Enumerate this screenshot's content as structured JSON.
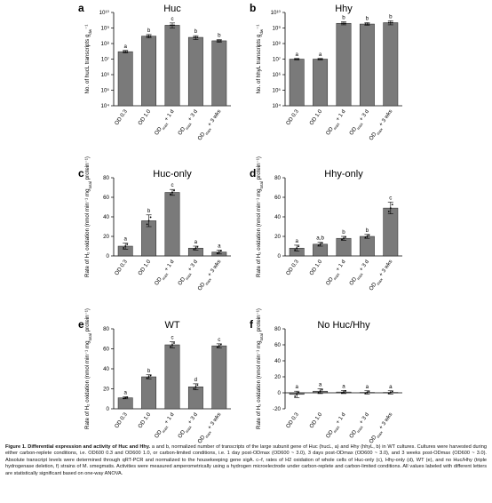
{
  "chart_data": [
    {
      "panel": "a",
      "title": "Huc",
      "type": "bar",
      "log_scale": true,
      "ylabel": "No. of hucL transcripts g_dw⁻¹",
      "ylim": [
        10000,
        10000000000
      ],
      "yticks": [
        "10⁴",
        "10⁵",
        "10⁶",
        "10⁷",
        "10⁸",
        "10⁹",
        "10¹⁰"
      ],
      "categories": [
        "OD 0.3",
        "OD 1.0",
        "OD_max + 1 d",
        "OD_max + 3 d",
        "OD_max + 3 wks"
      ],
      "values": [
        30000000,
        300000000,
        1500000000,
        250000000,
        150000000
      ],
      "err_low": [
        25000000,
        230000000,
        1000000000,
        180000000,
        120000000
      ],
      "err_high": [
        36000000,
        380000000,
        2100000000,
        320000000,
        180000000
      ],
      "letters": [
        "a",
        "b",
        "c",
        "b",
        "b"
      ]
    },
    {
      "panel": "b",
      "title": "Hhy",
      "type": "bar",
      "log_scale": true,
      "ylabel": "No. of hhyL transcripts g_dw⁻¹",
      "ylim": [
        10000,
        10000000000
      ],
      "yticks": [
        "10⁴",
        "10⁵",
        "10⁶",
        "10⁷",
        "10⁸",
        "10⁹",
        "10¹⁰"
      ],
      "categories": [
        "OD 0.3",
        "OD 1.0",
        "OD_max + 1 d",
        "OD_max + 3 d",
        "OD_max + 3 wks"
      ],
      "values": [
        10000000,
        10000000,
        2000000000,
        1800000000,
        2200000000
      ],
      "err_low": [
        9000000,
        9000000,
        1600000000,
        1500000000,
        1600000000
      ],
      "err_high": [
        11000000,
        11000000,
        2500000000,
        2200000000,
        2900000000
      ],
      "letters": [
        "a",
        "a",
        "b",
        "b",
        "b"
      ]
    },
    {
      "panel": "c",
      "title": "Huc-only",
      "type": "bar",
      "log_scale": false,
      "ylabel": "Rate of H₂ oxidation (nmol min⁻¹ mg_total protein⁻¹)",
      "ylim": [
        0,
        80
      ],
      "yticks": [
        "0",
        "20",
        "40",
        "60",
        "80"
      ],
      "categories": [
        "OD 0.3",
        "OD 1.0",
        "OD_max + 1 d",
        "OD_max + 3 d",
        "OD_max + 3 wks"
      ],
      "values": [
        10,
        36,
        65,
        8,
        4
      ],
      "errors": [
        3,
        6,
        3,
        2,
        2
      ],
      "letters": [
        "a",
        "b",
        "c",
        "a",
        "a"
      ]
    },
    {
      "panel": "d",
      "title": "Hhy-only",
      "type": "bar",
      "log_scale": false,
      "ylabel": "Rate of H₂ oxidation (nmol min⁻¹ mg_total protein⁻¹)",
      "ylim": [
        0,
        80
      ],
      "yticks": [
        "0",
        "20",
        "40",
        "60",
        "80"
      ],
      "categories": [
        "OD 0.3",
        "OD 1.0",
        "OD_max + 1 d",
        "OD_max + 3 d",
        "OD_max + 3 wks"
      ],
      "values": [
        8,
        12,
        18,
        20,
        49
      ],
      "errors": [
        3,
        2,
        2,
        2,
        6
      ],
      "letters": [
        "a",
        "a,b",
        "b",
        "b",
        "c"
      ]
    },
    {
      "panel": "e",
      "title": "WT",
      "type": "bar",
      "log_scale": false,
      "ylabel": "Rate of H₂ oxidation (nmol min⁻¹ mg_total protein⁻¹)",
      "ylim": [
        0,
        80
      ],
      "yticks": [
        "0",
        "20",
        "40",
        "60",
        "80"
      ],
      "categories": [
        "OD 0.3",
        "OD 1.0",
        "OD_max + 1 d",
        "OD_max + 3 d",
        "OD_max + 3 wks"
      ],
      "values": [
        11,
        32,
        64,
        22,
        63
      ],
      "errors": [
        1,
        2,
        3,
        3,
        2
      ],
      "letters": [
        "a",
        "b",
        "c",
        "d",
        "c"
      ]
    },
    {
      "panel": "f",
      "title": "No Huc/Hhy",
      "type": "bar",
      "log_scale": false,
      "ylabel": "Rate of H₂ oxidation (nmol min⁻¹ mg_total protein⁻¹)",
      "ylim": [
        -20,
        80
      ],
      "yticks": [
        "-20",
        "0",
        "20",
        "40",
        "60",
        "80"
      ],
      "categories": [
        "OD 0.3",
        "OD 1.0",
        "OD_max + 1 d",
        "OD_max + 3 d",
        "OD_max + 3 wks"
      ],
      "values": [
        -2,
        2,
        1,
        0.5,
        0.5
      ],
      "errors": [
        4,
        3,
        2,
        2,
        2
      ],
      "letters": [
        "a",
        "a",
        "a",
        "a",
        "a"
      ]
    }
  ],
  "caption": {
    "bold": "Figure 1. Differential expression and activity of Huc and Hhy.",
    "text": " a and b, normalized number of transcripts of the large subunit gene of Huc (hucL, a) and Hhy (hhyL, b) in WT cultures. Cultures were harvested during either carbon-replete conditions, i.e. OD600 0.3 and OD600 1.0, or carbon-limited conditions, i.e. 1 day post-ODmax (OD600 ~ 3.0), 3 days post-ODmax (OD600 ~ 3.0), and 3 weeks post-ODmax (OD600 ~ 3.0). Absolute transcript levels were determined through qRT-PCR and normalized to the housekeeping gene sigA. c–f, rates of H2 oxidation of whole cells of Huc-only (c), Hhy-only (d), WT (e), and no Huc/Hhy (triple hydrogenase deletion, f) strains of M. smegmatis. Activities were measured amperometrically using a hydrogen microelectrode under carbon-replete and carbon-limited conditions. All values labeled with different letters are statistically significant based on one-way ANOVA."
  }
}
